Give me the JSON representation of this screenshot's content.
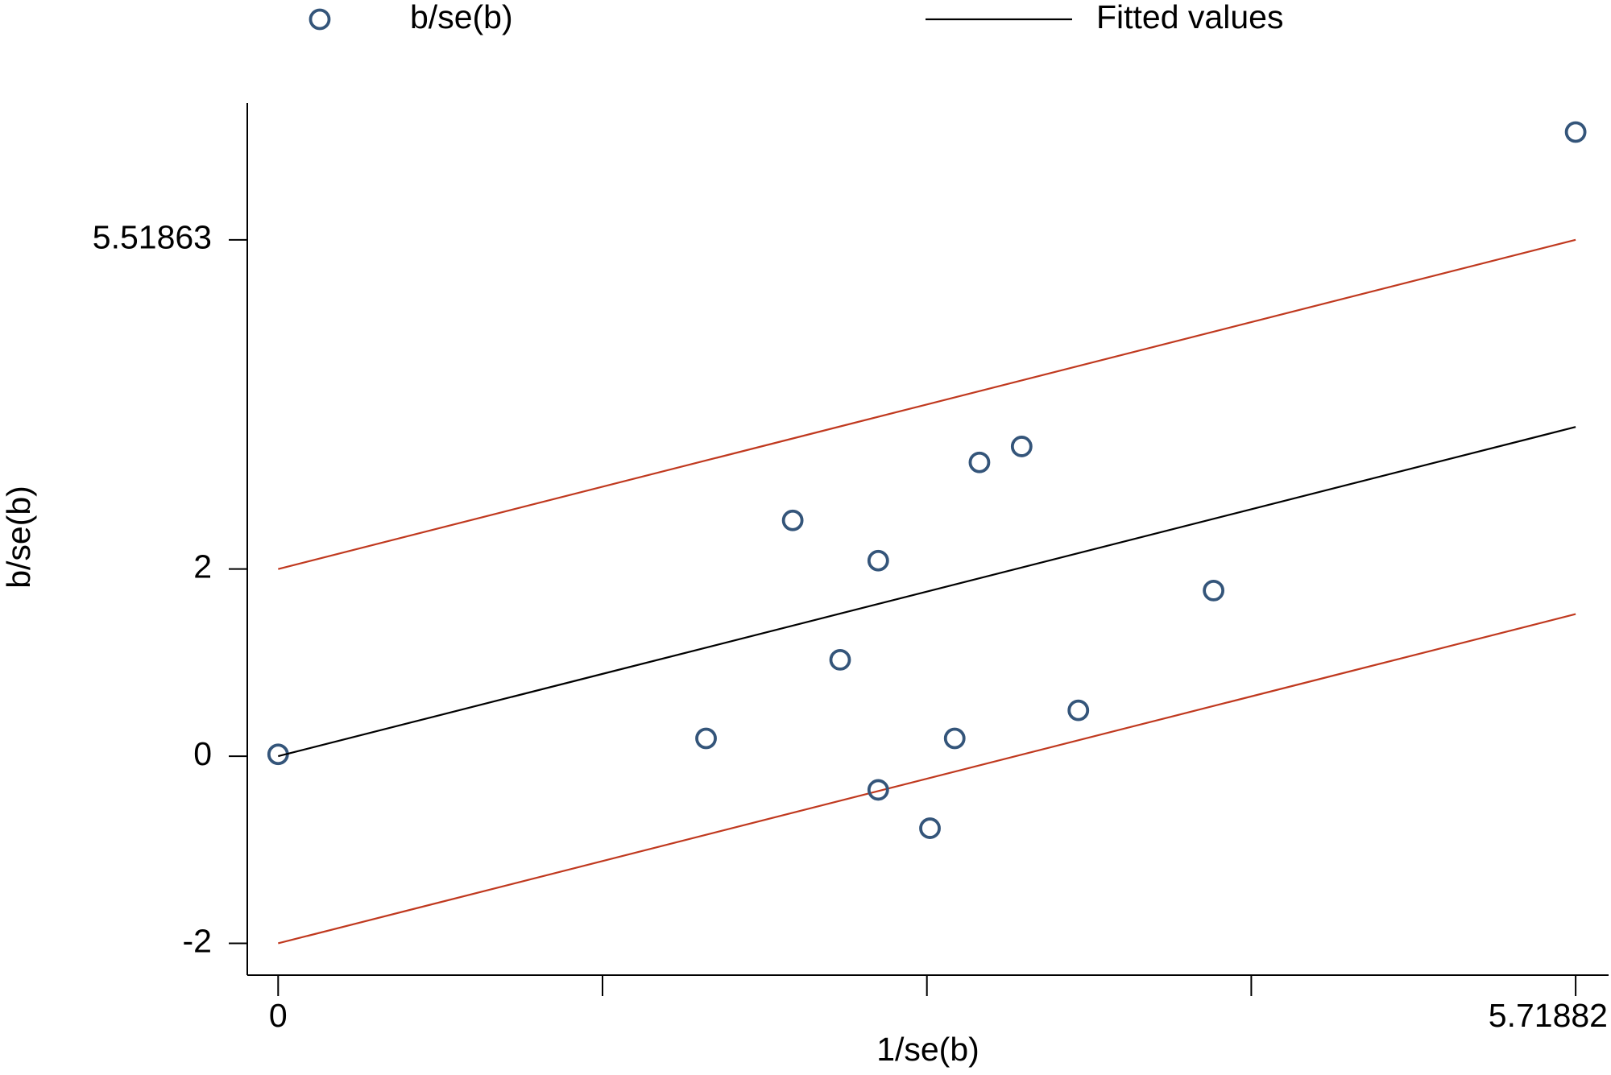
{
  "chart_data": {
    "type": "scatter",
    "xlabel": "1/se(b)",
    "ylabel": "b/se(b)",
    "xlim": [
      -0.136,
      5.864
    ],
    "ylim": [
      -2.34,
      6.98
    ],
    "xticks": [
      0,
      {
        "value": 1.429705,
        "label": null
      },
      {
        "value": 2.85941,
        "label": null
      },
      {
        "value": 4.289115,
        "label": null
      },
      5.71882
    ],
    "yticks": [
      -2,
      0,
      2,
      5.51863
    ],
    "series": [
      {
        "name": "b/se(b)",
        "type": "scatter",
        "color": "#34557a",
        "x": [
          0,
          1.886,
          2.268,
          2.477,
          2.645,
          2.645,
          2.873,
          2.982,
          3.091,
          3.277,
          3.527,
          4.123,
          5.71882
        ],
        "values": [
          0.02,
          0.19,
          2.52,
          1.03,
          2.09,
          -0.36,
          -0.77,
          0.19,
          3.14,
          3.31,
          0.49,
          1.77,
          6.67
        ]
      },
      {
        "name": "Fitted values",
        "type": "line",
        "color": "#000000",
        "x": [
          0,
          5.71882
        ],
        "values": [
          0,
          3.51863
        ]
      }
    ],
    "bounds": [
      {
        "color": "#c0391f",
        "x": [
          0,
          5.71882
        ],
        "values": [
          2,
          5.51863
        ]
      },
      {
        "color": "#c0391f",
        "x": [
          0,
          5.71882
        ],
        "values": [
          -2,
          1.51863
        ]
      }
    ]
  }
}
